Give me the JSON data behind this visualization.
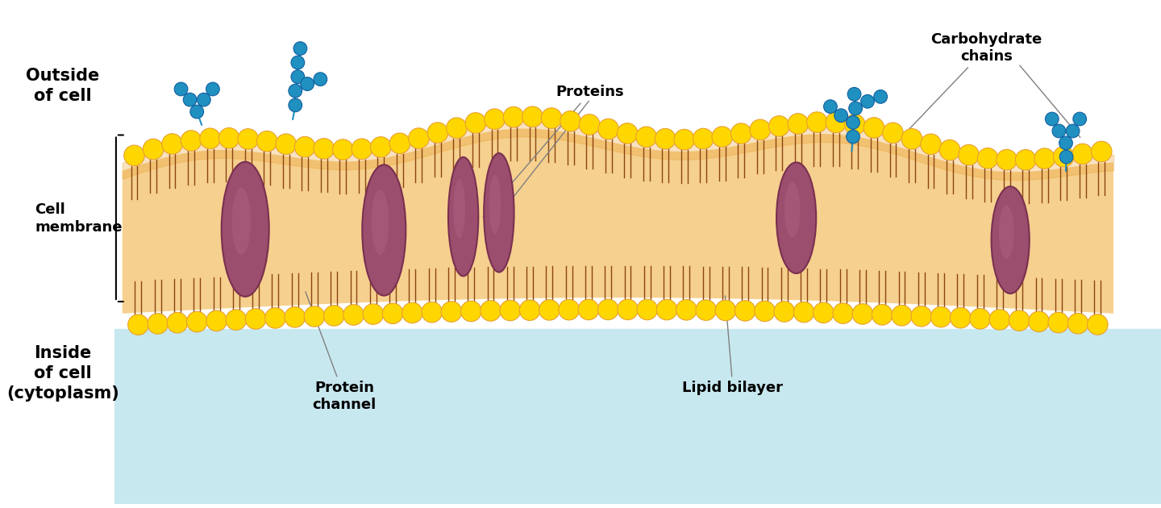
{
  "bg_color": "#ffffff",
  "outside_label": "Outside\nof cell",
  "inside_label": "Inside\nof cell\n(cytoplasm)",
  "cell_membrane_label": "Cell\nmembrane",
  "proteins_label": "Proteins",
  "protein_channel_label": "Protein\nchannel",
  "lipid_bilayer_label": "Lipid bilayer",
  "carbohydrate_label": "Carbohydrate\nchains",
  "membrane_fill": "#F5C87A",
  "membrane_edge": "#E8A030",
  "phospholipid_head_color": "#FFD700",
  "phospholipid_head_edge": "#E8A030",
  "phospholipid_tail_color": "#8B4513",
  "protein_color": "#9B4E6E",
  "protein_edge": "#7A3050",
  "carbohydrate_color": "#2090C0",
  "carbohydrate_edge": "#1060A0",
  "label_fontsize": 15,
  "label_fontweight": "bold",
  "annotation_fontsize": 13,
  "annotation_fontweight": "bold"
}
